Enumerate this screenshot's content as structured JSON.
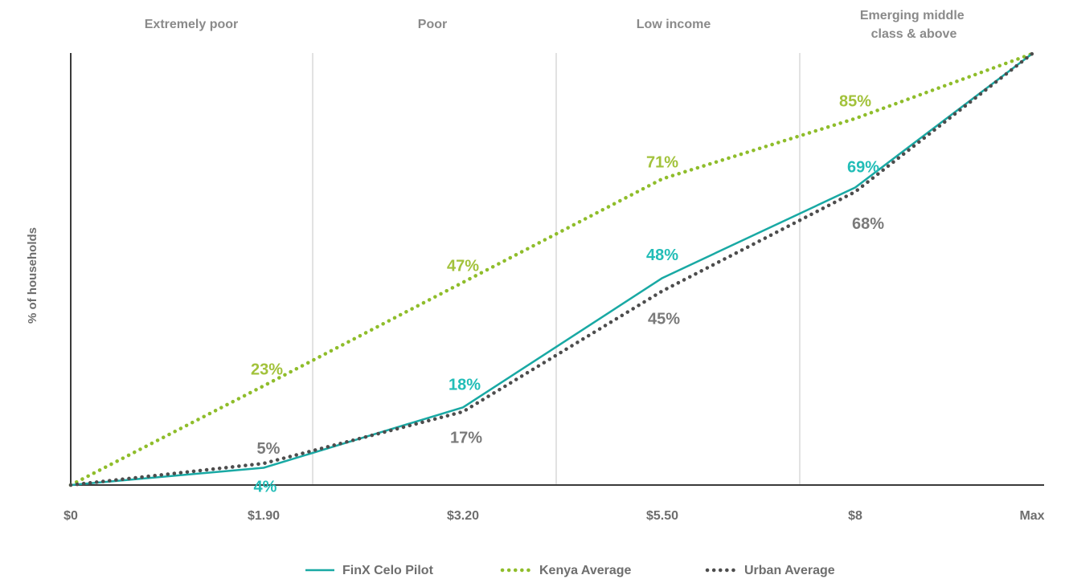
{
  "chart_data": {
    "type": "line",
    "title": "",
    "xlabel": "",
    "ylabel": "% of households",
    "ylim": [
      0,
      100
    ],
    "grid": false,
    "legend_position": "bottom-center",
    "x": [
      "$0",
      "$1.90",
      "$3.20",
      "$5.50",
      "$8",
      "Max"
    ],
    "bands": [
      "Extremely poor",
      "Poor",
      "Low income",
      "Emerging middle class & above"
    ],
    "series": [
      {
        "name": "FinX Celo Pilot",
        "style": "solid",
        "color": "#19a9a4",
        "label_color": "#22bdb7",
        "values": [
          0,
          4,
          18,
          48,
          69,
          100
        ],
        "labels": [
          "",
          "4%",
          "18%",
          "48%",
          "69%",
          ""
        ]
      },
      {
        "name": "Kenya Average",
        "style": "dotted",
        "color": "#8fbd2b",
        "label_color": "#a2c23b",
        "values": [
          0,
          23,
          47,
          71,
          85,
          100
        ],
        "labels": [
          "",
          "23%",
          "47%",
          "71%",
          "85%",
          ""
        ]
      },
      {
        "name": "Urban Average",
        "style": "dotted",
        "color": "#4d4d4d",
        "label_color": "#7a7a7a",
        "values": [
          0,
          5,
          17,
          45,
          68,
          100
        ],
        "labels": [
          "",
          "5%",
          "17%",
          "45%",
          "68%",
          ""
        ]
      }
    ]
  }
}
